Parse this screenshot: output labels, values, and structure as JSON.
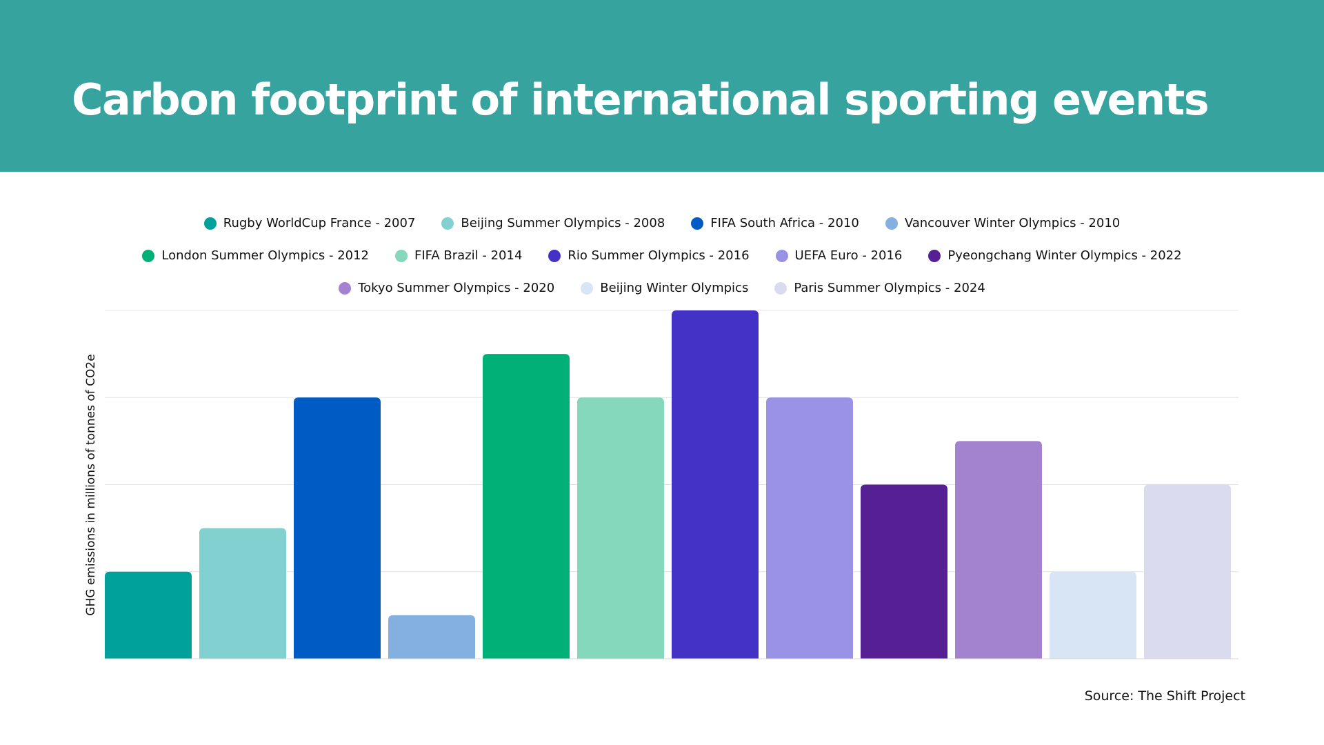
{
  "header": {
    "title": "Carbon footprint of international sporting events",
    "background": "#36a39e"
  },
  "legend": {
    "rows": [
      [
        0,
        1,
        2,
        3
      ],
      [
        4,
        5,
        6,
        7,
        8
      ],
      [
        9,
        10,
        11
      ]
    ]
  },
  "chart_data": {
    "type": "bar",
    "title": "Carbon footprint of international sporting events",
    "ylabel": "GHG emissions in millions of tonnes of CO2e",
    "xlabel": "",
    "ylim": [
      0,
      4
    ],
    "grid": true,
    "legend_position": "top",
    "categories": [
      "Rugby WorldCup France - 2007",
      "Beijing Summer Olympics - 2008",
      "FIFA South Africa - 2010",
      "Vancouver Winter Olympics - 2010",
      "London Summer Olympics - 2012",
      "FIFA Brazil - 2014",
      "Rio Summer Olympics - 2016",
      "UEFA Euro - 2016",
      "Pyeongchang Winter Olympics - 2022",
      "Tokyo Summer Olympics - 2020",
      "Beijing Winter Olympics",
      "Paris Summer Olympics - 2024"
    ],
    "values": [
      1.0,
      1.5,
      3.0,
      0.5,
      3.5,
      3.0,
      4.0,
      3.0,
      2.0,
      2.5,
      1.0,
      2.0
    ],
    "colors": [
      "#00a19a",
      "#83d0d0",
      "#005bc5",
      "#84b0e0",
      "#00b077",
      "#85d8bb",
      "#4431c6",
      "#9a92e4",
      "#561f93",
      "#a383cf",
      "#d8e5f5",
      "#dbdbef"
    ]
  },
  "footer": {
    "source": "Source: The Shift Project"
  }
}
